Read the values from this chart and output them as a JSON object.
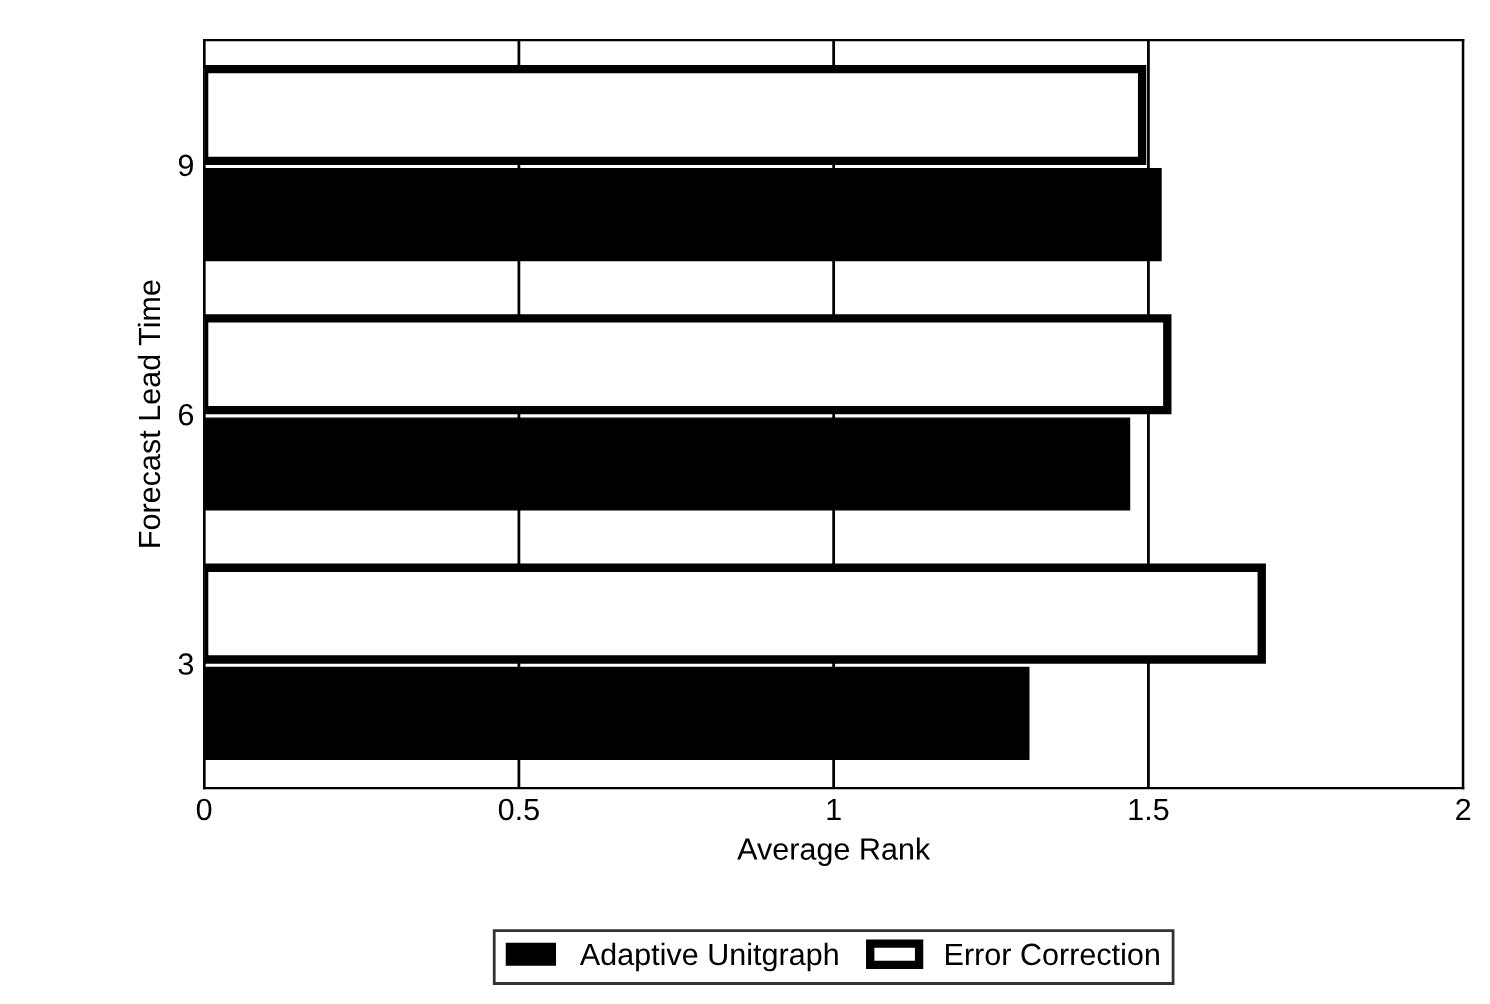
{
  "chart_data": {
    "type": "bar",
    "orientation": "horizontal",
    "xlabel": "Average Rank",
    "ylabel": "Forecast Lead Time",
    "categories": [
      "9",
      "6",
      "3"
    ],
    "series": [
      {
        "name": "Error Correction",
        "color": "#ffffff",
        "values": [
          1.49,
          1.53,
          1.68
        ]
      },
      {
        "name": "Adaptive Unitgraph",
        "color": "#000000",
        "values": [
          1.52,
          1.47,
          1.31
        ]
      }
    ],
    "xlim": [
      0,
      2
    ],
    "xticks": [
      0,
      0.5,
      1,
      1.5,
      2
    ],
    "grid": "x",
    "legend": "bottom"
  }
}
